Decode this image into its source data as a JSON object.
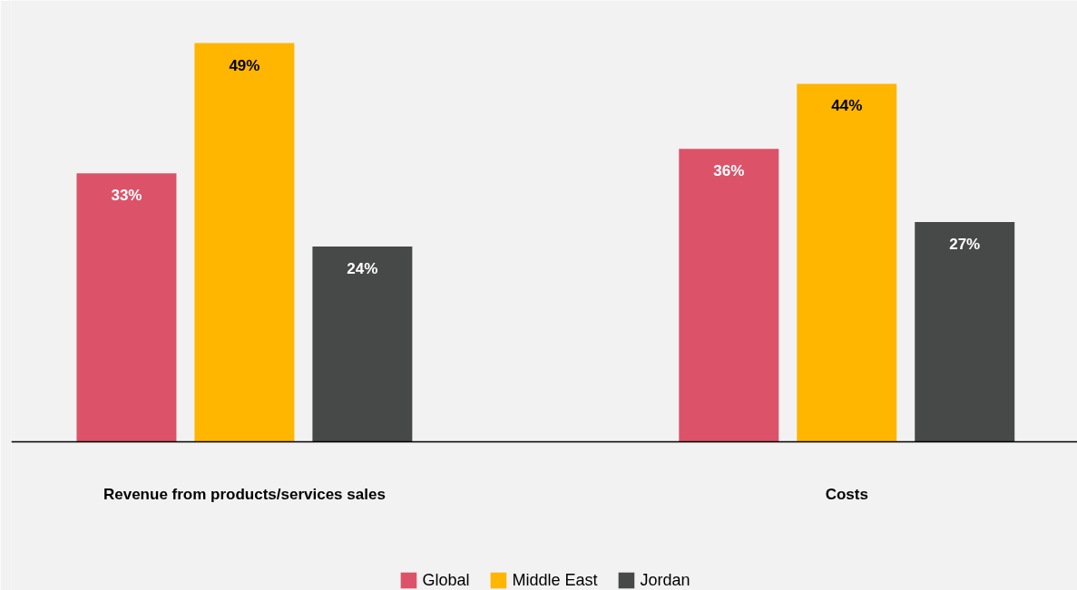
{
  "chart_data": {
    "type": "bar",
    "categories": [
      "Revenue from products/services sales",
      "Costs"
    ],
    "series": [
      {
        "name": "Global",
        "color": "#dc5369",
        "values": [
          33,
          36
        ],
        "value_labels": [
          "33%",
          "36%"
        ]
      },
      {
        "name": "Middle East",
        "color": "#ffb600",
        "values": [
          49,
          44
        ],
        "value_labels": [
          "49%",
          "44%"
        ]
      },
      {
        "name": "Jordan",
        "color": "#474948",
        "values": [
          24,
          27
        ],
        "value_labels": [
          "24%",
          "27%"
        ]
      }
    ],
    "legend": "bottom"
  }
}
